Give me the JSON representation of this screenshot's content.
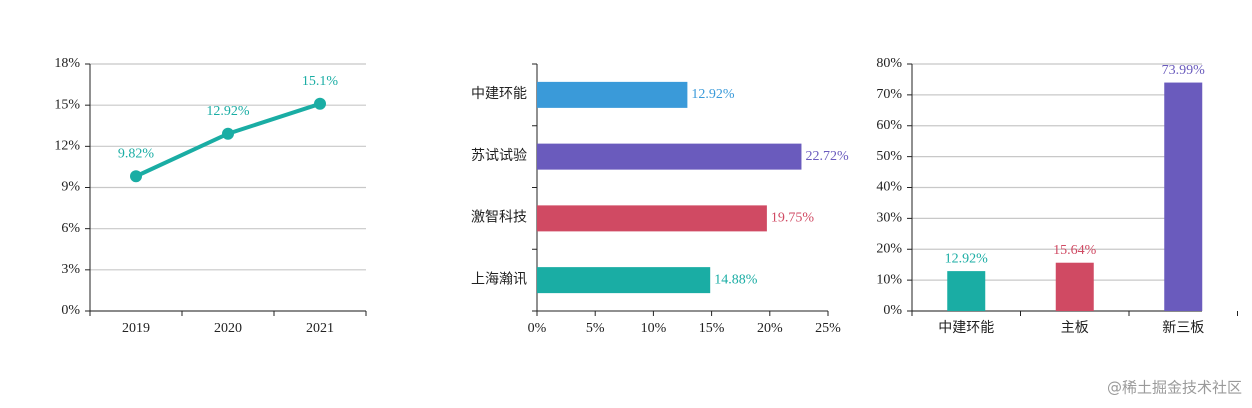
{
  "chart_data": [
    {
      "type": "line",
      "categories": [
        "2019",
        "2020",
        "2021"
      ],
      "values": [
        9.82,
        12.92,
        15.1
      ],
      "value_labels": [
        "9.82%",
        "12.92%",
        "15.1%"
      ],
      "color": "#1aada4",
      "ylim": [
        0,
        18
      ],
      "yticks": [
        {
          "value": 0,
          "label": "0%"
        },
        {
          "value": 3,
          "label": "3%"
        },
        {
          "value": 6,
          "label": "6%"
        },
        {
          "value": 9,
          "label": "9%"
        },
        {
          "value": 12,
          "label": "12%"
        },
        {
          "value": 15,
          "label": "15%"
        },
        {
          "value": 18,
          "label": "18%"
        }
      ],
      "grid": true
    },
    {
      "type": "bar",
      "orientation": "horizontal",
      "categories": [
        "中建环能",
        "苏试试验",
        "激智科技",
        "上海瀚讯"
      ],
      "values": [
        12.92,
        22.72,
        19.75,
        14.88
      ],
      "value_labels": [
        "12.92%",
        "22.72%",
        "19.75%",
        "14.88%"
      ],
      "colors": [
        "#3a9ad9",
        "#6a5bbd",
        "#d04a63",
        "#1aada4"
      ],
      "xlim": [
        0,
        25
      ],
      "xticks": [
        {
          "value": 0,
          "label": "0%"
        },
        {
          "value": 5,
          "label": "5%"
        },
        {
          "value": 10,
          "label": "10%"
        },
        {
          "value": 15,
          "label": "15%"
        },
        {
          "value": 20,
          "label": "20%"
        },
        {
          "value": 25,
          "label": "25%"
        }
      ],
      "grid": false
    },
    {
      "type": "bar",
      "orientation": "vertical",
      "categories": [
        "中建环能",
        "主板",
        "新三板"
      ],
      "values": [
        12.92,
        15.64,
        73.99
      ],
      "value_labels": [
        "12.92%",
        "15.64%",
        "73.99%"
      ],
      "colors": [
        "#1aada4",
        "#d04a63",
        "#6a5bbd"
      ],
      "ylim": [
        0,
        80
      ],
      "yticks": [
        {
          "value": 0,
          "label": "0%"
        },
        {
          "value": 10,
          "label": "10%"
        },
        {
          "value": 20,
          "label": "20%"
        },
        {
          "value": 30,
          "label": "30%"
        },
        {
          "value": 40,
          "label": "40%"
        },
        {
          "value": 50,
          "label": "50%"
        },
        {
          "value": 60,
          "label": "60%"
        },
        {
          "value": 70,
          "label": "70%"
        },
        {
          "value": 80,
          "label": "80%"
        }
      ],
      "grid": true
    }
  ],
  "watermark": "@稀土掘金技术社区"
}
